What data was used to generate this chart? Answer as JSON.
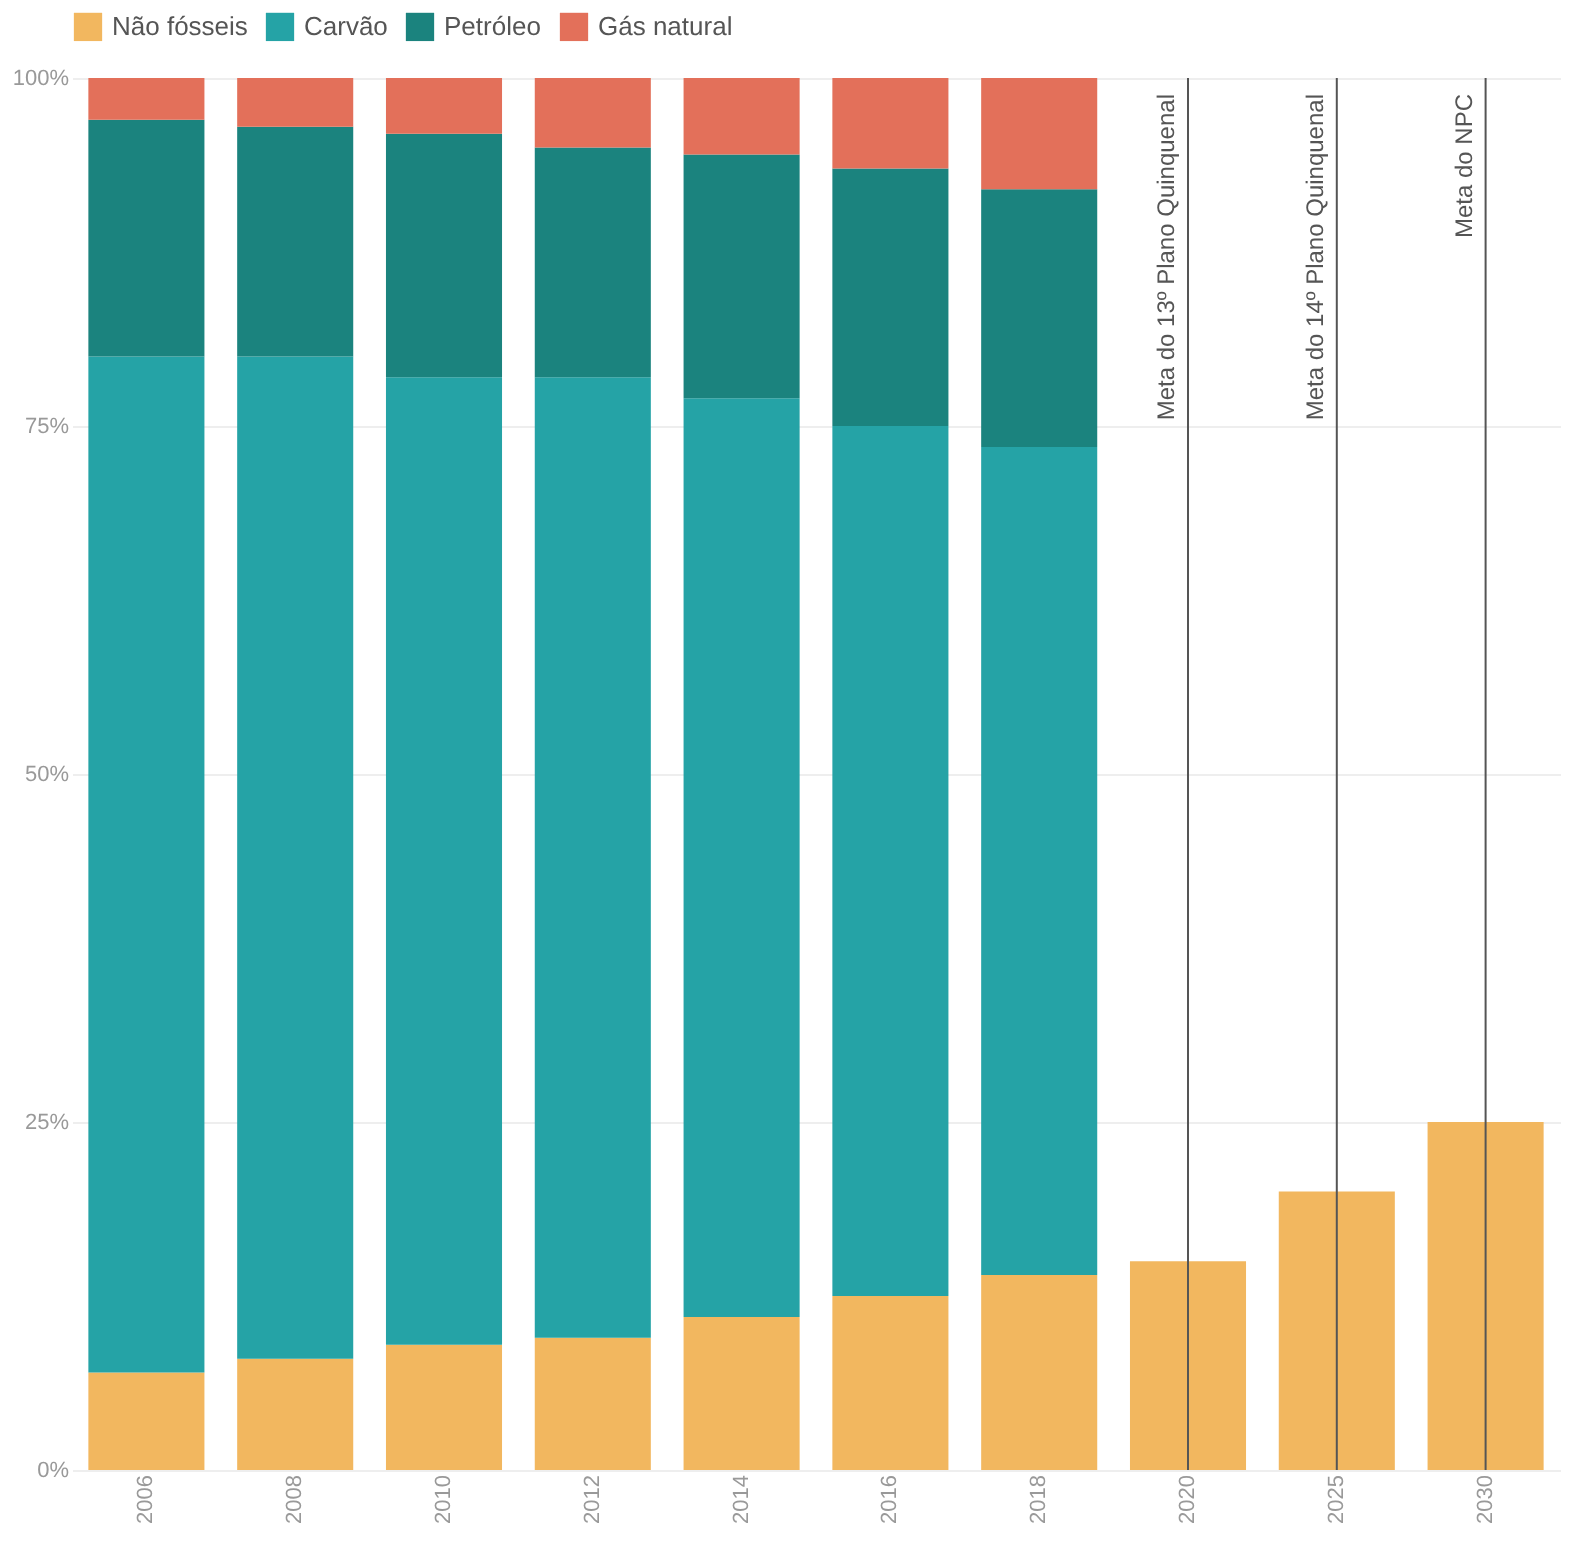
{
  "chart_data": {
    "type": "bar",
    "stacked": true,
    "categories": [
      "2006",
      "2008",
      "2010",
      "2012",
      "2014",
      "2016",
      "2018",
      "2020",
      "2025",
      "2030"
    ],
    "series": [
      {
        "name": "Não fósseis",
        "color": "#f2b75f",
        "values": [
          7,
          8,
          9,
          9.5,
          11,
          12.5,
          14,
          15,
          20,
          25
        ]
      },
      {
        "name": "Carvão",
        "color": "#25a3a6",
        "values": [
          73,
          72,
          69.5,
          69,
          66,
          62.5,
          59.5,
          null,
          null,
          null
        ]
      },
      {
        "name": "Petróleo",
        "color": "#1b837e",
        "values": [
          17,
          16.5,
          17.5,
          16.5,
          17.5,
          18.5,
          18.5,
          null,
          null,
          null
        ]
      },
      {
        "name": "Gás natural",
        "color": "#e3705a",
        "values": [
          3,
          3.5,
          4,
          5,
          5.5,
          6.5,
          8,
          null,
          null,
          null
        ]
      }
    ],
    "ylim": [
      0,
      100
    ],
    "yticks": [
      {
        "value": 0,
        "label": "0%"
      },
      {
        "value": 25,
        "label": "25%"
      },
      {
        "value": 50,
        "label": "50%"
      },
      {
        "value": 75,
        "label": "75%"
      },
      {
        "value": 100,
        "label": "100%"
      }
    ],
    "grid": "y",
    "legend": "top",
    "ref_lines": [
      {
        "axis": "x",
        "value": "2020",
        "label": "Meta do 13º Plano Quinquenal",
        "color": "#555555"
      },
      {
        "axis": "x",
        "value": "2025",
        "label": "Meta do 14º Plano Quinquenal",
        "color": "#555555"
      },
      {
        "axis": "x",
        "value": "2030",
        "label": "Meta do NPC",
        "color": "#555555"
      }
    ]
  }
}
